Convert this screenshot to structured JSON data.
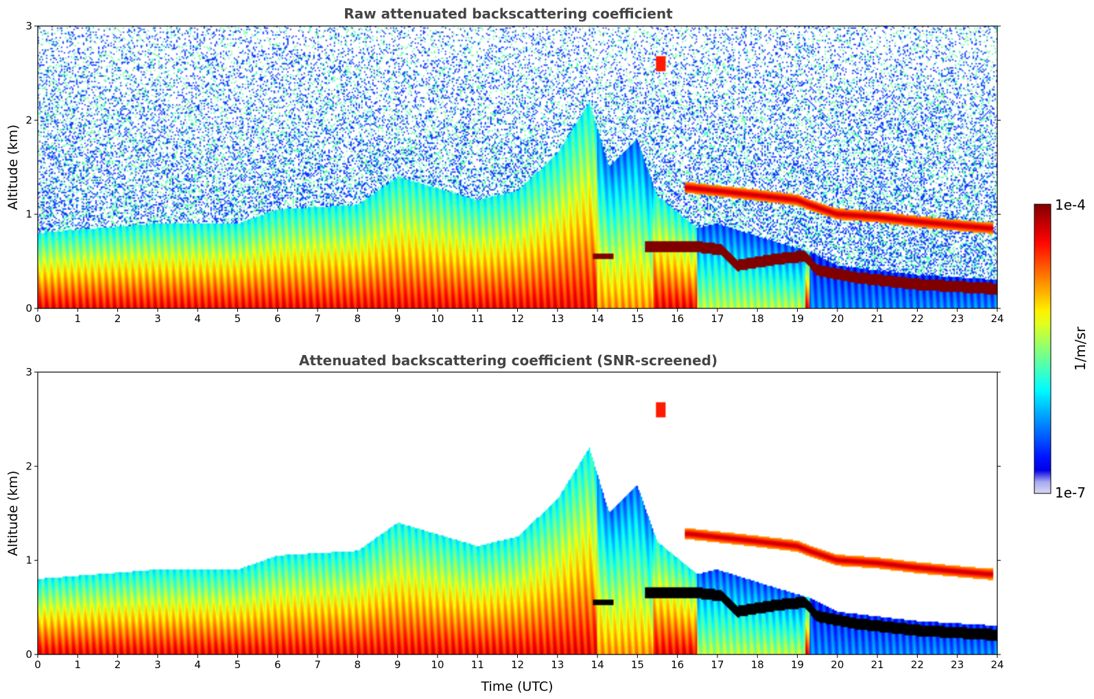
{
  "colors": {
    "jet": [
      "#000080",
      "#0000ff",
      "#0080ff",
      "#00ffff",
      "#80ff80",
      "#ffff00",
      "#ff8000",
      "#ff0000",
      "#800000"
    ],
    "low_end": "#d8d8f4",
    "saturated_screened": "#000000",
    "noise": "#0b3bff"
  },
  "chart_data": [
    {
      "type": "heatmap",
      "title": "Raw attenuated backscattering coefficient",
      "xlabel": "",
      "ylabel": "Altitude (km)",
      "xlim": [
        0,
        24
      ],
      "ylim": [
        0,
        3
      ],
      "x_ticks": [
        "0",
        "1",
        "2",
        "3",
        "4",
        "5",
        "6",
        "7",
        "8",
        "9",
        "10",
        "11",
        "12",
        "13",
        "14",
        "15",
        "16",
        "17",
        "18",
        "19",
        "20",
        "21",
        "22",
        "23",
        "24"
      ],
      "y_ticks": [
        "0",
        "1",
        "2",
        "3"
      ],
      "screened": false
    },
    {
      "type": "heatmap",
      "title": "Attenuated backscattering coefficient (SNR-screened)",
      "xlabel": "Time (UTC)",
      "ylabel": "Altitude (km)",
      "xlim": [
        0,
        24
      ],
      "ylim": [
        0,
        3
      ],
      "x_ticks": [
        "0",
        "1",
        "2",
        "3",
        "4",
        "5",
        "6",
        "7",
        "8",
        "9",
        "10",
        "11",
        "12",
        "13",
        "14",
        "15",
        "16",
        "17",
        "18",
        "19",
        "20",
        "21",
        "22",
        "23",
        "24"
      ],
      "y_ticks": [
        "0",
        "1",
        "2",
        "3"
      ],
      "screened": true
    }
  ],
  "colorbar": {
    "max_label": "1e-4",
    "min_label": "1e-7",
    "unit_label": "1/m/sr",
    "scale": "log"
  }
}
